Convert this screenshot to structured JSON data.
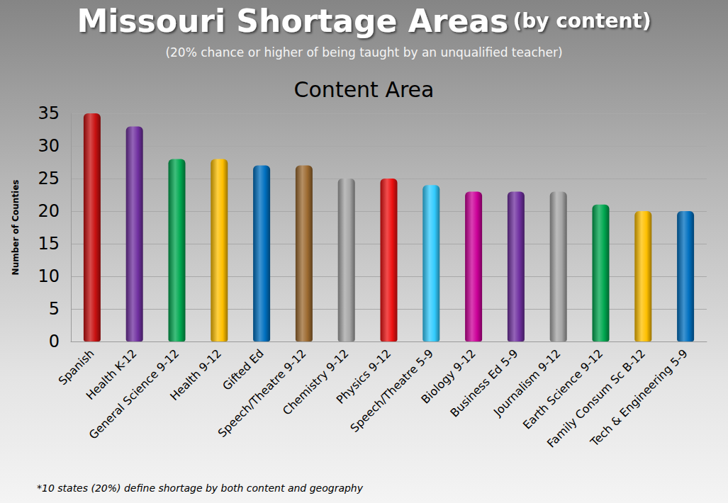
{
  "chart_data": {
    "type": "bar",
    "title": "Missouri Shortage Areas",
    "title_suffix": "(by content)",
    "subtitle": "(20% chance or higher of being taught by an unqualified teacher)",
    "chart_title": "Content Area",
    "ylabel": "Number of Counties",
    "footnote": "*10 states (20%) define shortage by both content and geography",
    "categories": [
      "Spanish",
      "Health K-12",
      "General Science 9-12",
      "Health 9-12",
      "Gifted Ed",
      "Speech/Theatre 9-12",
      "Chemistry 9-12",
      "Physics 9-12",
      "Speech/Theatre 5-9",
      "Biology 9-12",
      "Business Ed 5-9",
      "Journalism 9-12",
      "Earth Science 9-12",
      "Family Consum Sc B-12",
      "Tech & Engineering 5-9"
    ],
    "values": [
      35,
      33,
      28,
      28,
      27,
      27,
      25,
      25,
      24,
      23,
      23,
      23,
      21,
      20,
      20
    ],
    "colors": [
      "#c81010",
      "#7030a0",
      "#00a850",
      "#ffc000",
      "#0070c0",
      "#9c6a30",
      "#a6a6a6",
      "#ee1111",
      "#33ccff",
      "#cc0099",
      "#7030a0",
      "#a6a6a6",
      "#00a850",
      "#ffc000",
      "#0070c0"
    ],
    "ylim": [
      0,
      35
    ],
    "yticks": [
      0,
      5,
      10,
      15,
      20,
      25,
      30,
      35
    ],
    "grid": true
  }
}
